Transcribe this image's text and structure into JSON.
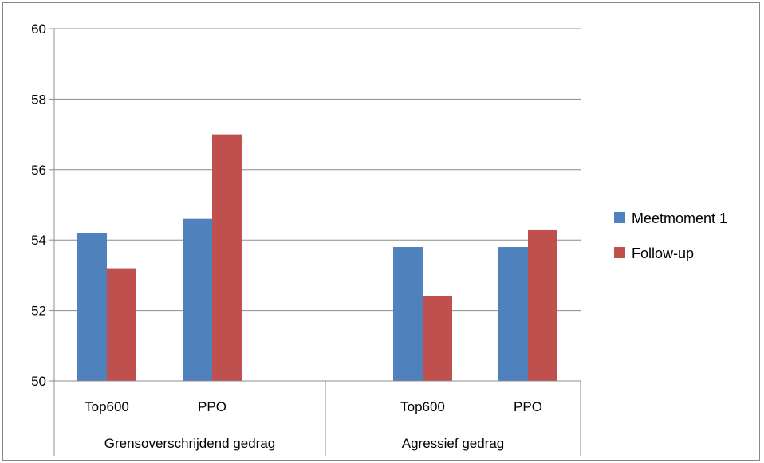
{
  "chart_data": {
    "type": "bar",
    "groups": [
      {
        "label": "Grensoverschrijdend gedrag",
        "categories": [
          "Top600",
          "PPO"
        ]
      },
      {
        "label": "Agressief gedrag",
        "categories": [
          "Top600",
          "PPO"
        ]
      }
    ],
    "categories": [
      "Top600",
      "PPO",
      "Top600",
      "PPO"
    ],
    "series": [
      {
        "name": "Meetmoment 1",
        "color": "#4F81BD",
        "values": [
          54.2,
          54.6,
          53.8,
          53.8
        ]
      },
      {
        "name": "Follow-up",
        "color": "#C0504D",
        "values": [
          53.2,
          57.0,
          52.4,
          54.3
        ]
      }
    ],
    "ylim": [
      50,
      60
    ],
    "yticks": [
      50,
      52,
      54,
      56,
      58,
      60
    ],
    "grid": true,
    "legend_position": "right",
    "title": "",
    "xlabel": "",
    "ylabel": ""
  }
}
